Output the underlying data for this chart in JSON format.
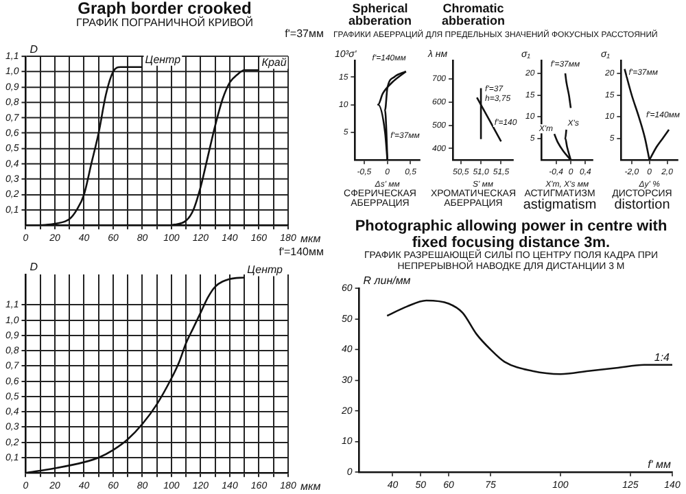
{
  "chart_data": [
    {
      "type": "line",
      "title": "Graph border crooked",
      "subtitle": "ГРАФИК ПОГРАНИЧНОЙ КРИВОЙ",
      "ylabel": "D",
      "xlabel": "мкм",
      "annotations": [
        "f'=37мм"
      ],
      "marker": "none",
      "grid": true,
      "legend": false,
      "xlim": [
        0,
        180
      ],
      "xticks": [
        0,
        {
          "value": 10,
          "label": null
        },
        20,
        {
          "value": 30,
          "label": null
        },
        40,
        {
          "value": 50,
          "label": null
        },
        60,
        {
          "value": 70,
          "label": null
        },
        80,
        {
          "value": 90,
          "label": null
        },
        100,
        {
          "value": 110,
          "label": null
        },
        120,
        {
          "value": 130,
          "label": null
        },
        140,
        {
          "value": 150,
          "label": null
        },
        160,
        {
          "value": 170,
          "label": null
        },
        180
      ],
      "ylim": [
        0,
        1.1
      ],
      "yticks": [
        {
          "value": 0.1,
          "label": "0,1"
        },
        {
          "value": 0.2,
          "label": "0,2"
        },
        {
          "value": 0.3,
          "label": "0,3"
        },
        {
          "value": 0.4,
          "label": "0,4"
        },
        {
          "value": 0.5,
          "label": "0,5"
        },
        {
          "value": 0.6,
          "label": "0,6"
        },
        {
          "value": 0.7,
          "label": "0,7"
        },
        {
          "value": 0.8,
          "label": "0,8"
        },
        {
          "value": 0.9,
          "label": "0,9"
        },
        {
          "value": 1.0,
          "label": "1,0"
        },
        {
          "value": 1.1,
          "label": "1,1"
        }
      ],
      "series": [
        {
          "name": "Центр",
          "color": "#111111",
          "x": [
            10,
            20,
            30,
            35,
            40,
            45,
            50,
            55,
            60,
            65,
            80
          ],
          "values": [
            0,
            0.01,
            0.04,
            0.1,
            0.2,
            0.4,
            0.6,
            0.85,
            1.0,
            1.03,
            1.03
          ]
        },
        {
          "name": "Край",
          "color": "#111111",
          "x": [
            100,
            110,
            115,
            120,
            125,
            130,
            135,
            140,
            145,
            150,
            160
          ],
          "values": [
            0,
            0.03,
            0.1,
            0.25,
            0.45,
            0.65,
            0.82,
            0.93,
            0.98,
            1.01,
            1.01
          ]
        }
      ]
    },
    {
      "type": "line",
      "ylabel": "D",
      "xlabel": "мкм",
      "annotations": [
        "f'=140мм"
      ],
      "marker": "none",
      "grid": true,
      "legend": false,
      "xlim": [
        0,
        180
      ],
      "xticks": [
        0,
        {
          "value": 10,
          "label": null
        },
        20,
        {
          "value": 30,
          "label": null
        },
        40,
        {
          "value": 50,
          "label": null
        },
        60,
        {
          "value": 70,
          "label": null
        },
        80,
        {
          "value": 90,
          "label": null
        },
        100,
        {
          "value": 110,
          "label": null
        },
        120,
        {
          "value": 130,
          "label": null
        },
        140,
        {
          "value": 150,
          "label": null
        },
        160,
        {
          "value": 170,
          "label": null
        },
        180
      ],
      "ylim": [
        0,
        1.3
      ],
      "yticks": [
        {
          "value": 0.1,
          "label": "0,1"
        },
        {
          "value": 0.2,
          "label": "0,2"
        },
        {
          "value": 0.3,
          "label": "0,3"
        },
        {
          "value": 0.4,
          "label": "0,4"
        },
        {
          "value": 0.5,
          "label": "0,5"
        },
        {
          "value": 0.6,
          "label": "0,6"
        },
        {
          "value": 0.7,
          "label": "0,7"
        },
        {
          "value": 0.8,
          "label": "0,8"
        },
        {
          "value": 0.9,
          "label": "0,9"
        },
        {
          "value": 1.0,
          "label": "1,0"
        },
        {
          "value": 1.1,
          "label": "1,1"
        }
      ],
      "series": [
        {
          "name": "Центр",
          "color": "#111111",
          "x": [
            0,
            20,
            40,
            50,
            60,
            70,
            80,
            90,
            100,
            105,
            110,
            115,
            120,
            125,
            130,
            140,
            150
          ],
          "values": [
            0,
            0.03,
            0.07,
            0.1,
            0.15,
            0.22,
            0.32,
            0.45,
            0.62,
            0.72,
            0.85,
            0.95,
            1.05,
            1.15,
            1.22,
            1.27,
            1.28
          ]
        }
      ]
    },
    {
      "type": "line",
      "title": "Photographic allowing power in centre with fixed focusing distance 3m.",
      "subtitle": "ГРАФИК РАЗРЕШАЮЩЕЙ СИЛЫ ПО ЦЕНТРУ ПОЛЯ КАДРА ПРИ НЕПРЕРЫВНОЙ НАВОДКЕ ДЛЯ ДИСТАНЦИИ 3 М",
      "ylabel": "R лин/мм",
      "xlabel": "f' мм",
      "marker": "none",
      "legend": false,
      "xlim": [
        28,
        140
      ],
      "xticks": [
        40,
        50,
        60,
        75,
        100,
        125,
        140
      ],
      "ylim": [
        0,
        60
      ],
      "yticks": [
        0,
        10,
        20,
        30,
        40,
        50,
        60
      ],
      "series": [
        {
          "name": "1:4",
          "color": "#111111",
          "x": [
            38,
            45,
            52,
            60,
            65,
            70,
            75,
            80,
            90,
            100,
            110,
            120,
            130,
            140
          ],
          "values": [
            51,
            54,
            56,
            55,
            52,
            45,
            40,
            36,
            33,
            32,
            33,
            34,
            35,
            35
          ]
        }
      ]
    },
    {
      "type": "line",
      "title": "Spherical abberation",
      "subtitle": "ГРАФИКИ АБЕРРАЦИЙ ДЛЯ ПРЕДЕЛЬНЫХ ЗНАЧЕНИЙ ФОКУСНЫХ РАССТОЯНИЙ",
      "annotations": [
        "СФЕРИЧЕСКАЯ АБЕРРАЦИЯ"
      ],
      "ylabel": "10³σ'",
      "xlabel": "Δs' мм",
      "marker": "none",
      "legend": false,
      "xlim": [
        -0.7,
        0.7
      ],
      "xticks": [
        {
          "value": -0.5,
          "label": "-0,5"
        },
        0,
        {
          "value": 0.5,
          "label": "0,5"
        }
      ],
      "ylim": [
        0,
        18
      ],
      "yticks": [
        5,
        10,
        15
      ],
      "series": [
        {
          "name": "f'=37мм",
          "color": "#111111",
          "x": [
            0,
            -0.02,
            -0.05,
            0,
            0.15,
            0.4
          ],
          "values": [
            0,
            5,
            9,
            13,
            15,
            16
          ]
        },
        {
          "name": "f'=140мм",
          "color": "#111111",
          "x": [
            0,
            -0.05,
            -0.2,
            -0.1,
            0.1,
            0.4
          ],
          "values": [
            0,
            5,
            10,
            12,
            14,
            16
          ]
        }
      ]
    },
    {
      "type": "line",
      "title": "Chromatic abberation",
      "annotations": [
        "ХРОМАТИЧЕСКАЯ АБЕРРАЦИЯ"
      ],
      "ylabel": "λ нм",
      "xlabel": "S' мм",
      "marker": "none",
      "legend": false,
      "xlim": [
        50.3,
        51.8
      ],
      "xticks": [
        {
          "value": 50.5,
          "label": "50,5"
        },
        {
          "value": 51.0,
          "label": "51,0"
        },
        {
          "value": 51.5,
          "label": "51,5"
        }
      ],
      "ylim": [
        350,
        780
      ],
      "yticks": [
        400,
        500,
        600,
        700
      ],
      "series": [
        {
          "name": "f'=37 h=3,75",
          "color": "#111111",
          "x": [
            51.0,
            51.0
          ],
          "values": [
            440,
            660
          ]
        },
        {
          "name": "f'=140",
          "color": "#111111",
          "x": [
            50.9,
            51.5
          ],
          "values": [
            620,
            430
          ]
        }
      ]
    },
    {
      "type": "line",
      "title": "astigmatism",
      "annotations": [
        "АСТИГМАТИЗМ"
      ],
      "ylabel": "σ₁",
      "xlabel": "X'm, X's мм",
      "marker": "none",
      "legend": false,
      "xlim": [
        -0.8,
        0.6
      ],
      "xticks": [
        {
          "value": -0.4,
          "label": "-0,4"
        },
        0,
        {
          "value": 0.4,
          "label": "0,4"
        }
      ],
      "ylim": [
        0,
        23
      ],
      "yticks": [
        5,
        10,
        15,
        20
      ],
      "series": [
        {
          "name": "f'=37мм",
          "color": "#111111",
          "x": [
            0,
            -0.05,
            -0.12,
            -0.15
          ],
          "values": [
            12,
            15,
            18,
            20
          ]
        },
        {
          "name": "X'm",
          "color": "#111111",
          "x": [
            0,
            -0.2,
            -0.35,
            -0.45
          ],
          "values": [
            0,
            2,
            4,
            6
          ]
        },
        {
          "name": "X's",
          "color": "#111111",
          "x": [
            0,
            -0.1,
            -0.15,
            -0.12
          ],
          "values": [
            0,
            3,
            5,
            7
          ]
        }
      ]
    },
    {
      "type": "line",
      "title": "distortion",
      "annotations": [
        "ДИСТОРСИЯ"
      ],
      "ylabel": "σ₁",
      "xlabel": "Δy' %",
      "marker": "none",
      "legend": false,
      "xlim": [
        -3.2,
        3.2
      ],
      "xticks": [
        {
          "value": -2.0,
          "label": "-2,0"
        },
        0,
        {
          "value": 2.0,
          "label": "2,0"
        }
      ],
      "ylim": [
        0,
        23
      ],
      "yticks": [
        5,
        10,
        15,
        20
      ],
      "series": [
        {
          "name": "f'=37мм",
          "color": "#111111",
          "x": [
            0,
            -0.5,
            -1.2,
            -2,
            -2.8
          ],
          "values": [
            0,
            5,
            10,
            15,
            21
          ]
        },
        {
          "name": "f'=140мм",
          "color": "#111111",
          "x": [
            0,
            0.8,
            1.5,
            2.2
          ],
          "values": [
            0,
            3,
            5,
            7
          ]
        }
      ]
    }
  ]
}
